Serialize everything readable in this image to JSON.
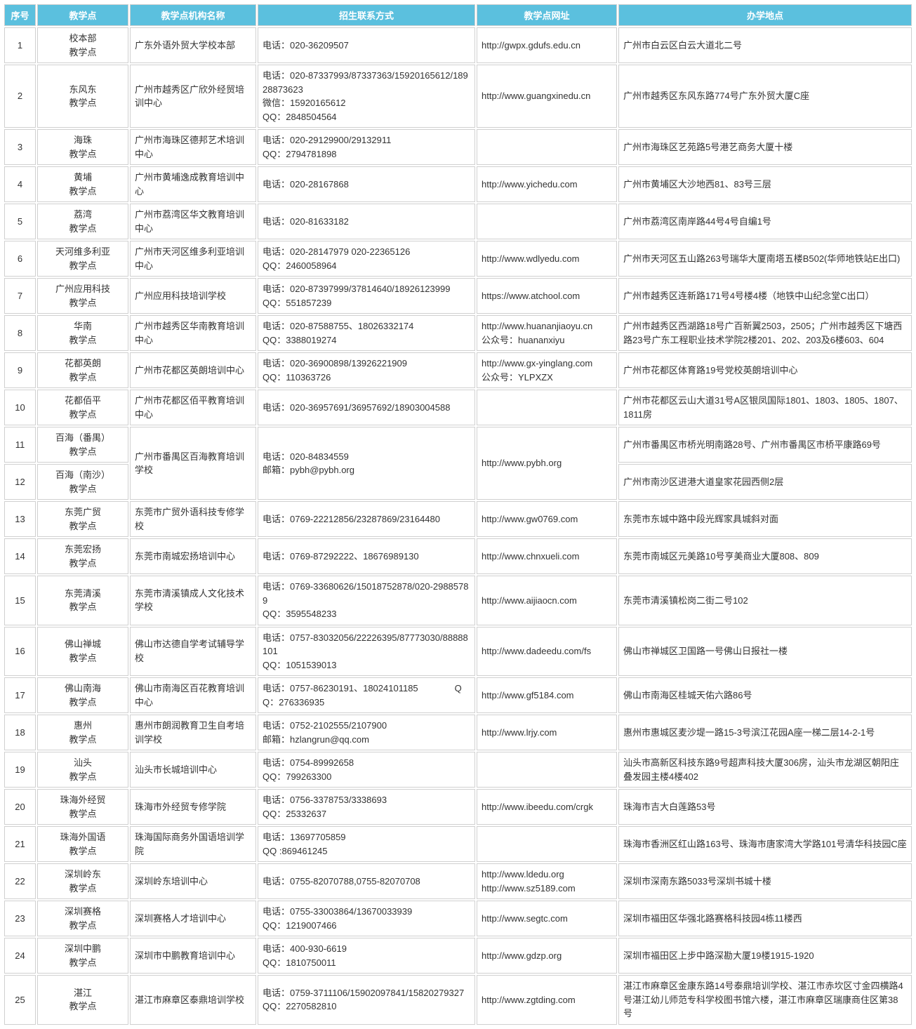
{
  "headers": [
    "序号",
    "教学点",
    "教学点机构名称",
    "招生联系方式",
    "教学点网址",
    "办学地点"
  ],
  "rows": [
    {
      "idx": "1",
      "pt": "校本部\n教学点",
      "org": "广东外语外贸大学校本部",
      "contact": "电话：020-36209507",
      "url": "http://gwpx.gdufs.edu.cn",
      "addr": "广州市白云区白云大道北二号"
    },
    {
      "idx": "2",
      "pt": "东风东\n教学点",
      "org": "广州市越秀区广欣外经贸培训中心",
      "contact": "电话：020-87337993/87337363/15920165612/18928873623\n微信：15920165612\nQQ：2848504564",
      "url": "http://www.guangxinedu.cn",
      "addr": "广州市越秀区东风东路774号广东外贸大厦C座"
    },
    {
      "idx": "3",
      "pt": "海珠\n教学点",
      "org": "广州市海珠区德邦艺术培训中心",
      "contact": "电话：020-29129900/29132911\nQQ：2794781898",
      "url": "",
      "addr": "广州市海珠区艺苑路5号港艺商务大厦十楼"
    },
    {
      "idx": "4",
      "pt": "黄埔\n教学点",
      "org": "广州市黄埔逸成教育培训中心",
      "contact": "电话：020-28167868",
      "url": "http://www.yichedu.com",
      "addr": "广州市黄埔区大沙地西81、83号三层"
    },
    {
      "idx": "5",
      "pt": "荔湾\n教学点",
      "org": "广州市荔湾区华文教育培训中心",
      "contact": "电话：020-81633182",
      "url": "",
      "addr": "广州市荔湾区南岸路44号4号自编1号"
    },
    {
      "idx": "6",
      "pt": "天河维多利亚\n教学点",
      "org": "广州市天河区维多利亚培训中心",
      "contact": "电话：020-28147979  020-22365126\nQQ：2460058964",
      "url": "http://www.wdlyedu.com",
      "addr": "广州市天河区五山路263号瑞华大厦南塔五楼B502(华师地铁站E出口)"
    },
    {
      "idx": "7",
      "pt": "广州应用科技\n教学点",
      "org": "广州应用科技培训学校",
      "contact": "电话：020-87397999/37814640/18926123999\nQQ：551857239",
      "url": "https://www.atchool.com",
      "addr": "广州市越秀区连新路171号4号楼4楼（地铁中山纪念堂C出口）"
    },
    {
      "idx": "8",
      "pt": "华南\n教学点",
      "org": "广州市越秀区华南教育培训中心",
      "contact": "电话：020-87588755、18026332174\nQQ：3388019274",
      "url": "http://www.huananjiaoyu.cn\n公众号：huananxiyu",
      "addr": "广州市越秀区西湖路18号广百新翼2503，2505；广州市越秀区下塘西路23号广东工程职业技术学院2楼201、202、203及6楼603、604"
    },
    {
      "idx": "9",
      "pt": "花都英朗\n教学点",
      "org": "广州市花都区英朗培训中心",
      "contact": "电话：020-36900898/13926221909\nQQ：110363726",
      "url": "http://www.gx-yinglang.com\n公众号：YLPXZX",
      "addr": "广州市花都区体育路19号党校英朗培训中心"
    },
    {
      "idx": "10",
      "pt": "花都佰平\n教学点",
      "org": "广州市花都区佰平教育培训中心",
      "contact": "电话：020-36957691/36957692/18903004588",
      "url": "",
      "addr": "广州市花都区云山大道31号A区银凤国际1801、1803、1805、1807、1811房"
    },
    {
      "idx": "11",
      "pt": "百海（番禺）\n教学点",
      "org": "广州市番禺区百海教育培训学校",
      "orgSpan": 2,
      "contact": "电话：020-84834559\n邮箱：pybh@pybh.org",
      "contactSpan": 2,
      "url": "http://www.pybh.org",
      "urlSpan": 2,
      "addr": "广州市番禺区市桥光明南路28号、广州市番禺区市桥平康路69号"
    },
    {
      "idx": "12",
      "pt": "百海（南沙）\n教学点",
      "orgSkip": true,
      "contactSkip": true,
      "urlSkip": true,
      "addr": "广州市南沙区进港大道皇家花园西侧2层"
    },
    {
      "idx": "13",
      "pt": "东莞广贸\n教学点",
      "org": "东莞市广贸外语科技专修学校",
      "contact": "电话：0769-22212856/23287869/23164480",
      "url": "http://www.gw0769.com",
      "addr": "东莞市东城中路中段光辉家具城斜对面"
    },
    {
      "idx": "14",
      "pt": "东莞宏扬\n教学点",
      "org": "东莞市南城宏扬培训中心",
      "contact": "电话：0769-87292222、18676989130",
      "url": "http://www.chnxueli.com",
      "addr": "东莞市南城区元美路10号亨美商业大厦808、809"
    },
    {
      "idx": "15",
      "pt": "东莞清溪\n教学点",
      "org": "东莞市清溪镇成人文化技术学校",
      "contact": "电话：0769-33680626/15018752878/020-29885789\nQQ：3595548233",
      "url": "http://www.aijiaocn.com",
      "addr": "东莞市清溪镇松岗二街二号102"
    },
    {
      "idx": "16",
      "pt": "佛山禅城\n教学点",
      "org": "佛山市达德自学考试辅导学校",
      "contact": "电话：0757-83032056/22226395/87773030/88888101\nQQ：1051539013",
      "url": "http://www.dadeedu.com/fs",
      "addr": "佛山市禅城区卫国路一号佛山日报社一楼"
    },
    {
      "idx": "17",
      "pt": "佛山南海\n教学点",
      "org": "佛山市南海区百花教育培训中心",
      "contact": "电话：0757-86230191、18024101185　　　　QQ：276336935",
      "url": "http://www.gf5184.com",
      "addr": "佛山市南海区桂城天佑六路86号"
    },
    {
      "idx": "18",
      "pt": "惠州\n教学点",
      "org": "惠州市朗润教育卫生自考培训学校",
      "contact": "电话：0752-2102555/2107900\n邮箱：hzlangrun@qq.com",
      "url": "http://www.lrjy.com",
      "addr": "惠州市惠城区麦沙堤一路15-3号滨江花园A座一梯二层14-2-1号"
    },
    {
      "idx": "19",
      "pt": "汕头\n教学点",
      "org": "汕头市长城培训中心",
      "contact": "电话：0754-89992658\nQQ：799263300",
      "url": "",
      "addr": "汕头市高新区科技东路9号超声科技大厦306房，汕头市龙湖区朝阳庄叠发园主楼4楼402"
    },
    {
      "idx": "20",
      "pt": "珠海外经贸\n教学点",
      "org": "珠海市外经贸专修学院",
      "contact": "电话：0756-3378753/3338693\nQQ：25332637",
      "url": "http://www.ibeedu.com/crgk",
      "addr": "珠海市吉大白莲路53号"
    },
    {
      "idx": "21",
      "pt": "珠海外国语\n教学点",
      "org": "珠海国际商务外国语培训学院",
      "contact": "电话：13697705859\nQQ :869461245",
      "url": "",
      "addr": "珠海市香洲区红山路163号、珠海市唐家湾大学路101号清华科技园C座"
    },
    {
      "idx": "22",
      "pt": "深圳岭东\n教学点",
      "org": "深圳岭东培训中心",
      "contact": "电话：0755-82070788,0755-82070708",
      "url": "http://www.ldedu.org\nhttp://www.sz5189.com",
      "addr": "深圳市深南东路5033号深圳书城十楼"
    },
    {
      "idx": "23",
      "pt": "深圳赛格\n教学点",
      "org": "深圳赛格人才培训中心",
      "contact": "电话：0755-33003864/13670033939\nQQ：1219007466",
      "url": "http://www.segtc.com",
      "addr": "深圳市福田区华强北路赛格科技园4栋11楼西"
    },
    {
      "idx": "24",
      "pt": "深圳中鹏\n教学点",
      "org": "深圳市中鹏教育培训中心",
      "contact": "电话：400-930-6619\nQQ：1810750011",
      "url": "http://www.gdzp.org",
      "addr": "深圳市福田区上步中路深勘大厦19楼1915-1920"
    },
    {
      "idx": "25",
      "pt": "湛江\n教学点",
      "org": "湛江市麻章区泰鼎培训学校",
      "contact": "电话：0759-3711106/15902097841/15820279327\nQQ：2270582810",
      "url": "http://www.zgtding.com",
      "addr": "湛江市麻章区金康东路14号泰鼎培训学校、湛江市赤坎区寸金四横路4号湛江幼儿师范专科学校图书馆六楼，湛江市麻章区瑞康商住区第38号"
    }
  ]
}
